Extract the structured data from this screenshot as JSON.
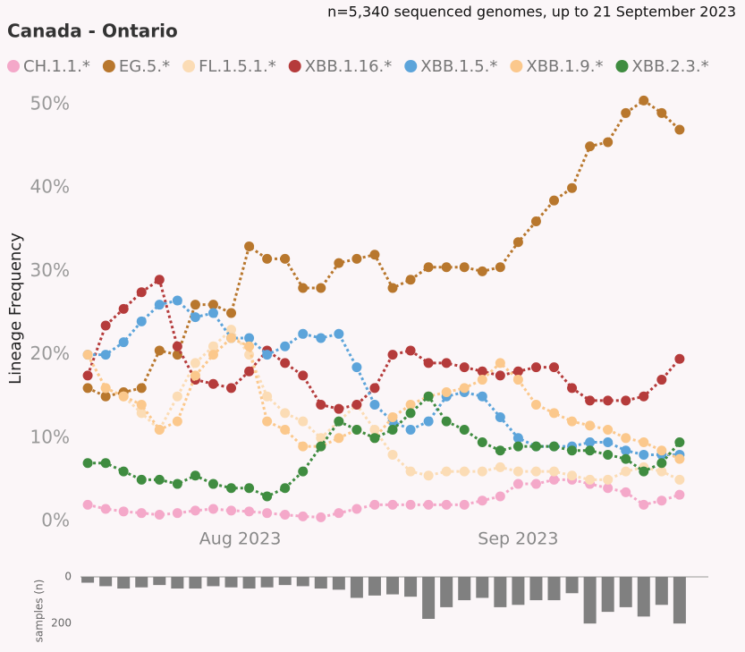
{
  "chart_data": [
    {
      "type": "line",
      "title": "Canada - Ontario",
      "subtitle": "n=5,340 sequenced genomes, up to 21 September 2023",
      "y_label": "Lineage Frequency",
      "x": [
        0,
        2,
        4,
        6,
        8,
        10,
        12,
        14,
        16,
        18,
        20,
        22,
        24,
        26,
        28,
        30,
        32,
        34,
        36,
        38,
        40,
        42,
        44,
        46,
        48,
        50,
        52,
        54,
        56,
        58,
        60,
        62,
        64,
        66
      ],
      "xlim": [
        -3,
        70
      ],
      "xticks": [
        {
          "value": 17,
          "label": "Aug 2023"
        },
        {
          "value": 48,
          "label": "Sep 2023"
        }
      ],
      "ylim": [
        0,
        50
      ],
      "yticks": [
        {
          "value": 0,
          "label": "0%"
        },
        {
          "value": 10,
          "label": "10%"
        },
        {
          "value": 20,
          "label": "20%"
        },
        {
          "value": 30,
          "label": "30%"
        },
        {
          "value": 40,
          "label": "40%"
        },
        {
          "value": 50,
          "label": "50%"
        }
      ],
      "series": [
        {
          "name": "CH.1.1.*",
          "color": "#f4a8c9",
          "values": [
            2,
            1.5,
            1.2,
            1,
            0.8,
            1,
            1.3,
            1.5,
            1.3,
            1.2,
            1,
            0.8,
            0.6,
            0.5,
            1,
            1.5,
            2,
            2,
            2,
            2,
            2,
            2,
            2.5,
            3,
            4.5,
            4.5,
            5,
            5,
            4.5,
            4,
            3.5,
            2,
            2.5,
            3.2
          ]
        },
        {
          "name": "EG.5.*",
          "color": "#b8772d",
          "values": [
            16,
            15,
            15.5,
            16,
            20.5,
            20,
            26,
            26,
            25,
            33,
            31.5,
            31.5,
            28,
            28,
            31,
            31.5,
            32,
            28,
            29,
            30.5,
            30.5,
            30.5,
            30,
            30.5,
            33.5,
            36,
            38.5,
            40,
            45,
            45.5,
            49,
            50.5,
            49,
            47
          ]
        },
        {
          "name": "FL.1.5.1.*",
          "color": "#fbdcb5",
          "values": [
            20,
            16,
            15,
            13,
            11,
            15,
            19,
            21,
            23,
            20,
            15,
            13,
            12,
            10,
            12,
            14,
            11,
            8,
            6,
            5.5,
            6,
            6,
            6,
            6.5,
            6,
            6,
            6,
            5.5,
            5,
            5,
            6,
            6.5,
            6,
            5
          ]
        },
        {
          "name": "XBB.1.16.*",
          "color": "#b53b3b",
          "values": [
            17.5,
            23.5,
            25.5,
            27.5,
            29,
            21,
            17,
            16.5,
            16,
            18,
            20.5,
            19,
            17.5,
            14,
            13.5,
            14,
            16,
            20,
            20.5,
            19,
            19,
            18.5,
            18,
            17.5,
            18,
            18.5,
            18.5,
            16,
            14.5,
            14.5,
            14.5,
            15,
            17,
            19.5
          ]
        },
        {
          "name": "XBB.1.5.*",
          "color": "#5ca4da",
          "values": [
            20,
            20,
            21.5,
            24,
            26,
            26.5,
            24.5,
            25,
            22,
            22,
            20,
            21,
            22.5,
            22,
            22.5,
            18.5,
            14,
            12,
            11,
            12,
            15,
            15.5,
            15,
            12.5,
            10,
            9,
            9,
            9,
            9.5,
            9.5,
            8.5,
            8,
            8,
            8
          ]
        },
        {
          "name": "XBB.1.9.*",
          "color": "#fbc88c",
          "values": [
            20,
            16,
            15,
            14,
            11,
            12,
            17.5,
            20,
            22,
            21,
            12,
            11,
            9,
            9,
            10,
            11,
            10,
            12.5,
            14,
            15,
            15.5,
            16,
            17,
            19,
            17,
            14,
            13,
            12,
            11.5,
            11,
            10,
            9.5,
            8.5,
            7.5
          ]
        },
        {
          "name": "XBB.2.3.*",
          "color": "#3f8c40",
          "values": [
            7,
            7,
            6,
            5,
            5,
            4.5,
            5.5,
            4.5,
            4,
            4,
            3,
            4,
            6,
            9,
            12,
            11,
            10,
            11,
            13,
            15,
            12,
            11,
            9.5,
            8.5,
            9,
            9,
            9,
            8.5,
            8.5,
            8,
            7.5,
            6,
            7,
            9.5
          ]
        }
      ]
    },
    {
      "type": "bar",
      "y_label": "samples (n)",
      "color": "#808080",
      "x": [
        0,
        2,
        4,
        6,
        8,
        10,
        12,
        14,
        16,
        18,
        20,
        22,
        24,
        26,
        28,
        30,
        32,
        34,
        36,
        38,
        40,
        42,
        44,
        46,
        48,
        50,
        52,
        54,
        56,
        58,
        60,
        62,
        64,
        66
      ],
      "xlim": [
        -3,
        70
      ],
      "ylim": [
        0,
        230
      ],
      "yticks": [
        0,
        200
      ],
      "values": [
        25,
        40,
        50,
        45,
        35,
        50,
        50,
        40,
        45,
        50,
        45,
        35,
        40,
        50,
        55,
        90,
        80,
        75,
        85,
        180,
        130,
        100,
        90,
        130,
        120,
        100,
        100,
        70,
        200,
        150,
        130,
        170,
        120,
        200
      ]
    }
  ]
}
